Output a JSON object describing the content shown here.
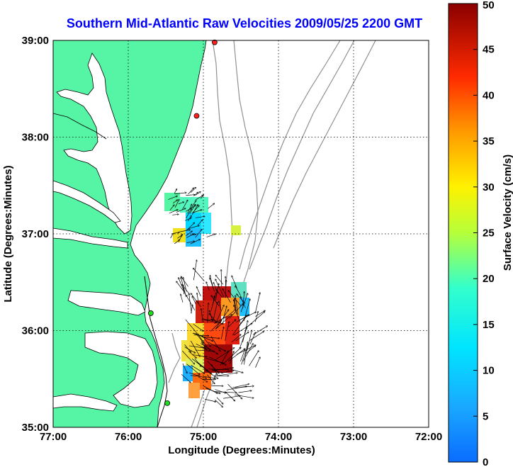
{
  "map": {
    "title": "Southern Mid-Atlantic Raw Velocities 2009/05/25 2200 GMT",
    "x_axis_label": "Longitude (Degrees:Minutes)",
    "y_axis_label": "Latitude (Degrees:Minutes)",
    "x_ticks": [
      "77:00",
      "76:00",
      "75:00",
      "74:00",
      "73:00",
      "72:00"
    ],
    "y_ticks": [
      "39:00",
      "38:00",
      "37:00",
      "36:00",
      "35:00"
    ],
    "lon_range": [
      -77,
      -72
    ],
    "lat_range": [
      35,
      39
    ],
    "grid": "dotted",
    "land_color": "#55f5a5",
    "ocean_color": "#ffffff",
    "bathymetry_color": "#909090",
    "stations": [
      {
        "color": "#ff2020",
        "lon": -74.85,
        "lat": 38.98
      },
      {
        "color": "#ff2020",
        "lon": -75.09,
        "lat": 38.22
      },
      {
        "color": "#20dd20",
        "lon": -75.7,
        "lat": 36.18
      },
      {
        "color": "#20dd20",
        "lon": -75.48,
        "lat": 35.25
      }
    ]
  },
  "colorbar": {
    "label": "Surface Velocity (cm/s)",
    "ticks": [
      "0",
      "5",
      "10",
      "15",
      "20",
      "25",
      "30",
      "35",
      "40",
      "45",
      "50"
    ],
    "range": [
      0,
      50
    ],
    "colormap": "jet"
  }
}
